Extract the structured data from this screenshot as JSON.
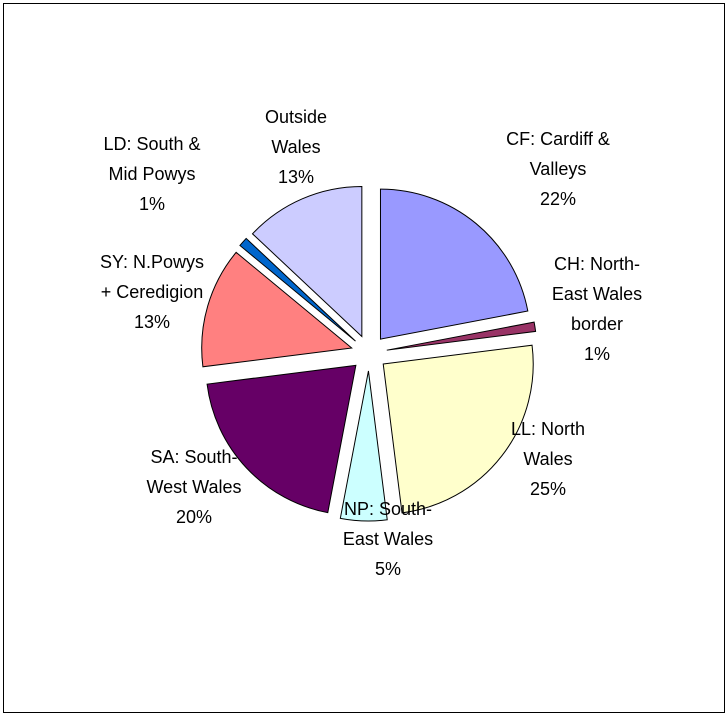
{
  "chart_data": {
    "type": "pie",
    "title": "",
    "slices": [
      {
        "lines": [
          "CF: Cardiff &",
          "Valleys",
          "22%"
        ],
        "value": 22,
        "color": "#9999FF"
      },
      {
        "lines": [
          "CH: North-",
          "East Wales",
          "border",
          "1%"
        ],
        "value": 1,
        "color": "#993366"
      },
      {
        "lines": [
          "LL: North",
          "Wales",
          "25%"
        ],
        "value": 25,
        "color": "#FFFFCC"
      },
      {
        "lines": [
          "NP: South-",
          "East Wales",
          "5%"
        ],
        "value": 5,
        "color": "#CCFFFF"
      },
      {
        "lines": [
          "SA: South-",
          "West Wales",
          "20%"
        ],
        "value": 20,
        "color": "#660066"
      },
      {
        "lines": [
          "SY: N.Powys",
          "+ Ceredigion",
          "13%"
        ],
        "value": 13,
        "color": "#FF8080"
      },
      {
        "lines": [
          "LD: South &",
          "Mid Powys",
          "1%"
        ],
        "value": 1,
        "color": "#0066CC"
      },
      {
        "lines": [
          "Outside",
          "Wales",
          "13%"
        ],
        "value": 13,
        "color": "#CCCCFF"
      }
    ],
    "legend": "none",
    "data_labels": "outside"
  }
}
